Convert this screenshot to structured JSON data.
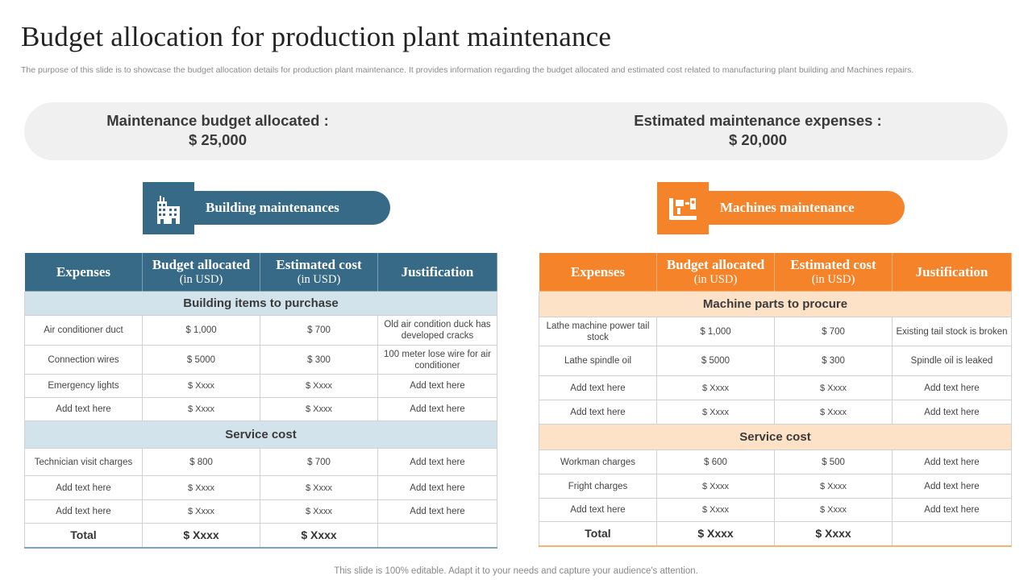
{
  "title": "Budget allocation for production plant maintenance",
  "subtitle": "The purpose of this slide is to showcase the budget allocation details for production plant maintenance. It provides information regarding the budget allocated and estimated cost related to manufacturing plant building and Machines repairs.",
  "budget": {
    "allocated_label": "Maintenance budget allocated :",
    "allocated_value": "$ 25,000",
    "expenses_label": "Estimated maintenance expenses :",
    "expenses_value": "$ 20,000"
  },
  "colors": {
    "building_accent": "#376a87",
    "machine_accent": "#f5832a"
  },
  "building": {
    "icon": "building-icon",
    "title": "Building maintenances",
    "headers": {
      "expenses": "Expenses",
      "budget": "Budget allocated",
      "budget_unit": "(in USD)",
      "estimated": "Estimated cost",
      "estimated_unit": "(in USD)",
      "justification": "Justification"
    },
    "section1": "Building items to purchase",
    "rows1": [
      [
        "Air conditioner duct",
        "$ 1,000",
        "$ 700",
        "Old air condition duck has developed cracks"
      ],
      [
        "Connection wires",
        "$ 5000",
        "$ 300",
        "100 meter lose wire for air conditioner"
      ],
      [
        "Emergency lights",
        "$ Xxxx",
        "$ Xxxx",
        "Add text here"
      ],
      [
        "Add text here",
        "$ Xxxx",
        "$ Xxxx",
        "Add text here"
      ]
    ],
    "section2": "Service cost",
    "rows2": [
      [
        "Technician visit charges",
        "$ 800",
        "$ 700",
        "Add text here"
      ],
      [
        "Add text here",
        "$ Xxxx",
        "$ Xxxx",
        "Add text here"
      ],
      [
        "Add text here",
        "$ Xxxx",
        "$ Xxxx",
        "Add text here"
      ]
    ],
    "total": [
      "Total",
      "$ Xxxx",
      "$ Xxxx",
      ""
    ]
  },
  "machines": {
    "icon": "machine-icon",
    "title": "Machines maintenance",
    "headers": {
      "expenses": "Expenses",
      "budget": "Budget allocated",
      "budget_unit": "(in USD)",
      "estimated": "Estimated cost",
      "estimated_unit": "(in USD)",
      "justification": "Justification"
    },
    "section1": "Machine parts to procure",
    "rows1": [
      [
        "Lathe machine power tail stock",
        "$ 1,000",
        "$ 700",
        "Existing tail stock is broken"
      ],
      [
        "Lathe spindle oil",
        "$ 5000",
        "$ 300",
        "Spindle oil is leaked"
      ],
      [
        "Add text here",
        "$ Xxxx",
        "$ Xxxx",
        "Add text here"
      ],
      [
        "Add text here",
        "$ Xxxx",
        "$ Xxxx",
        "Add text here"
      ]
    ],
    "section2": "Service cost",
    "rows2": [
      [
        "Workman charges",
        "$ 600",
        "$ 500",
        "Add text here"
      ],
      [
        "Fright charges",
        "$ Xxxx",
        "$ Xxxx",
        "Add text here"
      ],
      [
        "Add text here",
        "$ Xxxx",
        "$ Xxxx",
        "Add text here"
      ]
    ],
    "total": [
      "Total",
      "$ Xxxx",
      "$ Xxxx",
      ""
    ]
  },
  "footer": "This slide is 100% editable. Adapt it to your needs and capture your audience's attention."
}
